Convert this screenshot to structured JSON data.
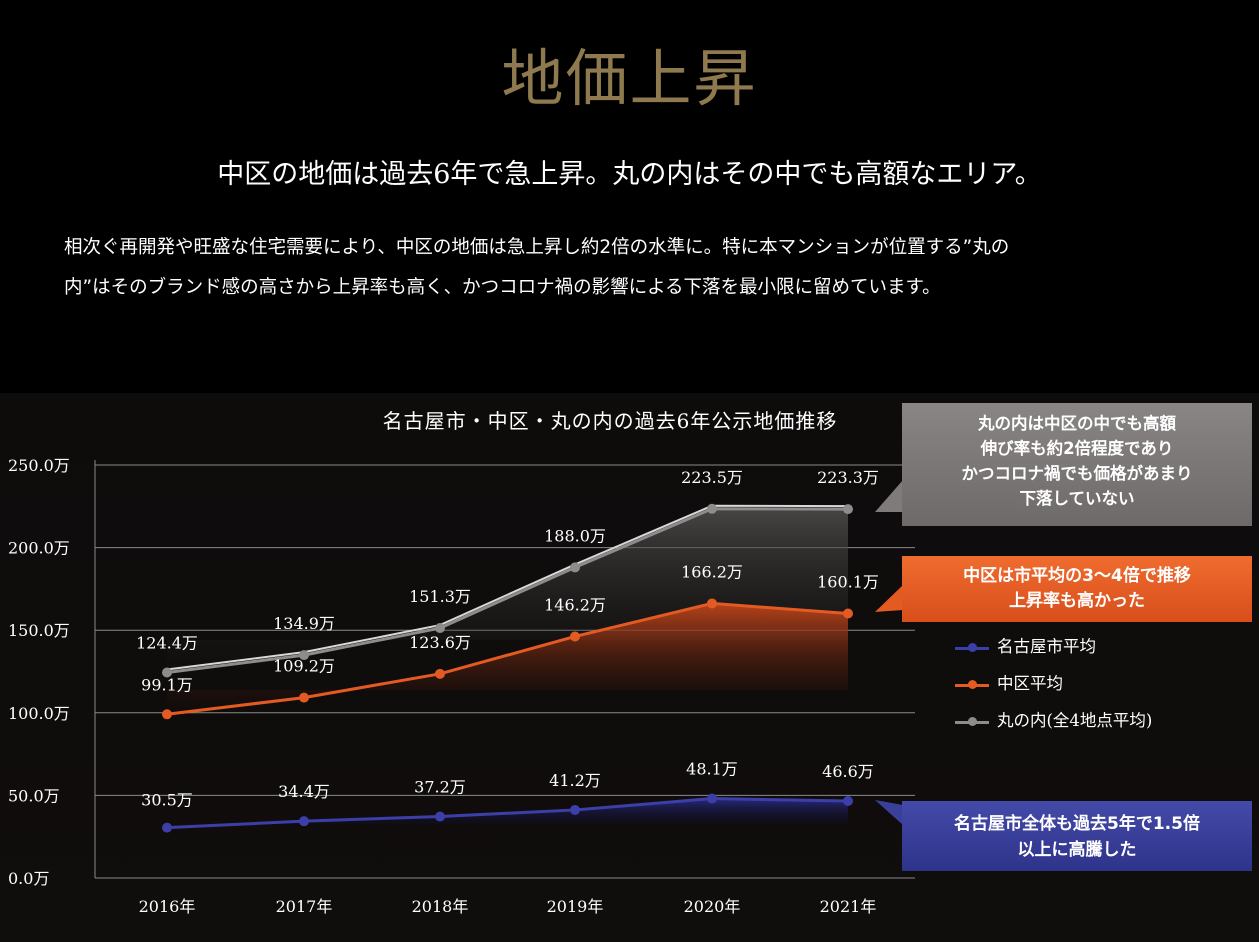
{
  "heading": "地価上昇",
  "subheading": "中区の地価は過去6年で急上昇。丸の内はその中でも高額なエリア。",
  "body_lines": [
    "相次ぐ再開発や旺盛な住宅需要により、中区の地価は急上昇し約2倍の水準に。特に本マンションが位置する”丸の",
    "内”はそのブランド感の高さから上昇率も高く、かつコロナ禍の影響による下落を最小限に留めています。"
  ],
  "callouts": {
    "marunouchi": [
      "丸の内は中区の中でも高額",
      "伸び率も約2倍程度であり",
      "かつコロナ禍でも価格があまり",
      "下落していない"
    ],
    "naka": [
      "中区は市平均の3〜4倍で推移",
      "上昇率も高かった"
    ],
    "nagoya": [
      "名古屋市全体も過去5年で1.5倍",
      "以上に高騰した"
    ]
  },
  "colors": {
    "heading": "#8e7a4e",
    "nagoya": "#3d3fa8",
    "naka": "#e35a22",
    "marunouchi": "#8f8b8b"
  },
  "chart_data": {
    "type": "line",
    "title": "名古屋市・中区・丸の内の過去6年公示地価推移",
    "categories": [
      "2016年",
      "2017年",
      "2018年",
      "2019年",
      "2020年",
      "2021年"
    ],
    "yticks": [
      "0.0万",
      "50.0万",
      "100.0万",
      "150.0万",
      "200.0万",
      "250.0万"
    ],
    "ylim": [
      0,
      250
    ],
    "legend_position": "right",
    "grid": true,
    "series": [
      {
        "key": "nagoya",
        "name": "名古屋市平均",
        "values": [
          30.5,
          34.4,
          37.2,
          41.2,
          48.1,
          46.6
        ],
        "labels": [
          "30.5万",
          "34.4万",
          "37.2万",
          "41.2万",
          "48.1万",
          "46.6万"
        ]
      },
      {
        "key": "naka",
        "name": "中区平均",
        "values": [
          99.1,
          109.2,
          123.6,
          146.2,
          166.2,
          160.1
        ],
        "labels": [
          "99.1万",
          "109.2万",
          "123.6万",
          "146.2万",
          "166.2万",
          "160.1万"
        ]
      },
      {
        "key": "marunouchi",
        "name": "丸の内(全4地点平均)",
        "values": [
          124.4,
          134.9,
          151.3,
          188.0,
          223.5,
          223.3
        ],
        "labels": [
          "124.4万",
          "134.9万",
          "151.3万",
          "188.0万",
          "223.5万",
          "223.3万"
        ]
      }
    ]
  }
}
